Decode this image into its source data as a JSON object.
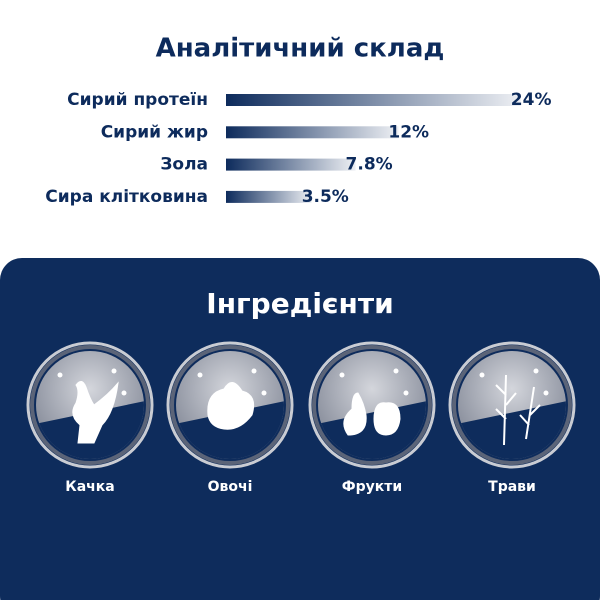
{
  "chart_data": {
    "type": "bar",
    "orientation": "horizontal",
    "title": "Аналітичний склад",
    "categories": [
      "Сирий протеїн",
      "Сирий жир",
      "Зола",
      "Сира клітковина"
    ],
    "values": [
      24,
      12,
      7.8,
      3.5
    ],
    "value_labels": [
      "24%",
      "12%",
      "7.8%",
      "3.5%"
    ],
    "color": "#0d2b5c"
  },
  "ingredients": {
    "title": "Інгредієнти",
    "items": [
      "Качка",
      "Овочі",
      "Фрукти",
      "Трави"
    ]
  }
}
